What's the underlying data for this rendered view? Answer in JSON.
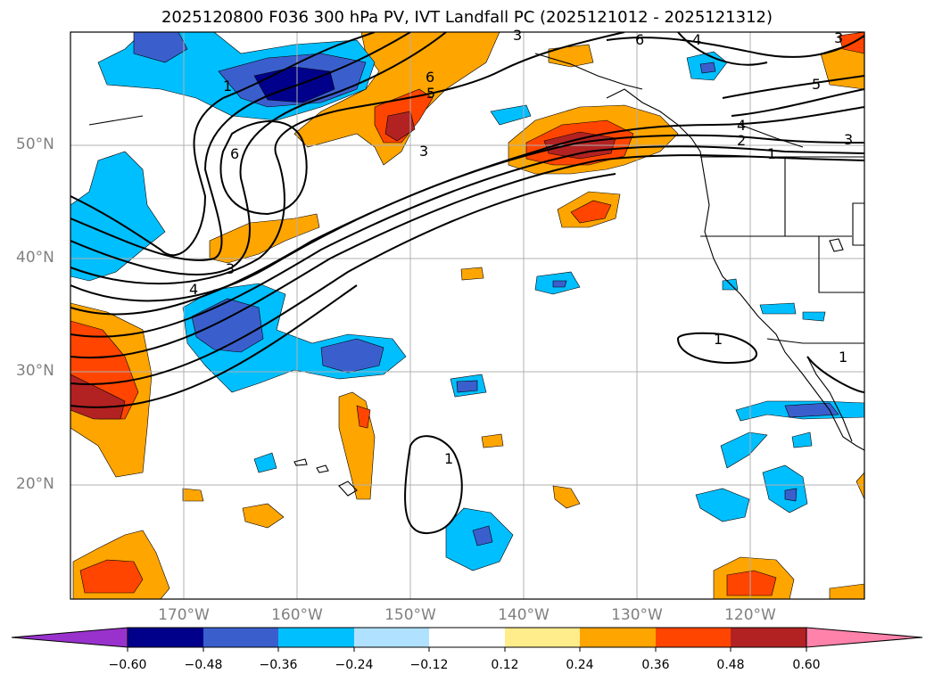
{
  "title": "2025120800 F036 300 hPa PV, IVT Landfall PC (2025121012 - 2025121312)",
  "map": {
    "lat_labels": [
      "50°N",
      "40°N",
      "30°N",
      "20°N"
    ],
    "lon_labels": [
      "170°W",
      "160°W",
      "150°W",
      "140°W",
      "130°W",
      "120°W"
    ],
    "contour_labels": [
      "1",
      "6",
      "5",
      "3",
      "4",
      "2",
      "1",
      "3",
      "4",
      "6",
      "3",
      "1",
      "1",
      "3",
      "6",
      "4",
      "5",
      "3",
      "1"
    ]
  },
  "colorbar": {
    "ticks": [
      "−0.60",
      "−0.48",
      "−0.36",
      "−0.24",
      "−0.12",
      "0.12",
      "0.24",
      "0.36",
      "0.48",
      "0.60"
    ],
    "colors": [
      "#9932cc",
      "#00008b",
      "#3a5fcd",
      "#00bfff",
      "#b0e2ff",
      "#ffffff",
      "#ffec8b",
      "#ffa500",
      "#ff4500",
      "#b22222",
      "#ff82ab"
    ]
  }
}
